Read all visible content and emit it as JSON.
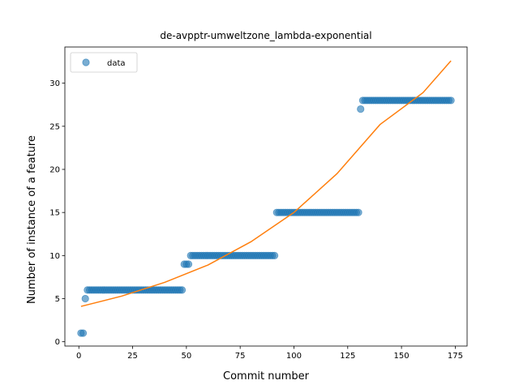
{
  "chart_data": {
    "type": "scatter",
    "title": "de-avpptr-umweltzone_lambda-exponential",
    "xlabel": "Commit number",
    "ylabel": "Number of instance of a feature",
    "xlim": [
      -6.5,
      180.5
    ],
    "ylim": [
      -0.5,
      34.2
    ],
    "xticks": [
      0,
      25,
      50,
      75,
      100,
      125,
      150,
      175
    ],
    "yticks": [
      0,
      5,
      10,
      15,
      20,
      25,
      30
    ],
    "grid": false,
    "legend": {
      "position": "top-left",
      "entries": [
        "data"
      ]
    },
    "colors": {
      "data": "#1f77b4",
      "fit": "#ff7f0e"
    },
    "series": [
      {
        "name": "data",
        "kind": "scatter",
        "segments": [
          {
            "x_start": 1,
            "x_end": 2,
            "y": 1
          },
          {
            "x_start": 3,
            "x_end": 3,
            "y": 5
          },
          {
            "x_start": 4,
            "x_end": 48,
            "y": 6
          },
          {
            "x_start": 49,
            "x_end": 51,
            "y": 9
          },
          {
            "x_start": 52,
            "x_end": 91,
            "y": 10
          },
          {
            "x_start": 92,
            "x_end": 130,
            "y": 15
          },
          {
            "x_start": 131,
            "x_end": 131,
            "y": 27
          },
          {
            "x_start": 132,
            "x_end": 173,
            "y": 28
          }
        ]
      },
      {
        "kind": "line",
        "function": "exponential",
        "points": [
          [
            1,
            4.1
          ],
          [
            20,
            5.3
          ],
          [
            40,
            6.9
          ],
          [
            60,
            8.9
          ],
          [
            80,
            11.6
          ],
          [
            100,
            15.0
          ],
          [
            120,
            19.5
          ],
          [
            140,
            25.2
          ],
          [
            160,
            28.9
          ],
          [
            173,
            32.6
          ]
        ]
      }
    ]
  }
}
